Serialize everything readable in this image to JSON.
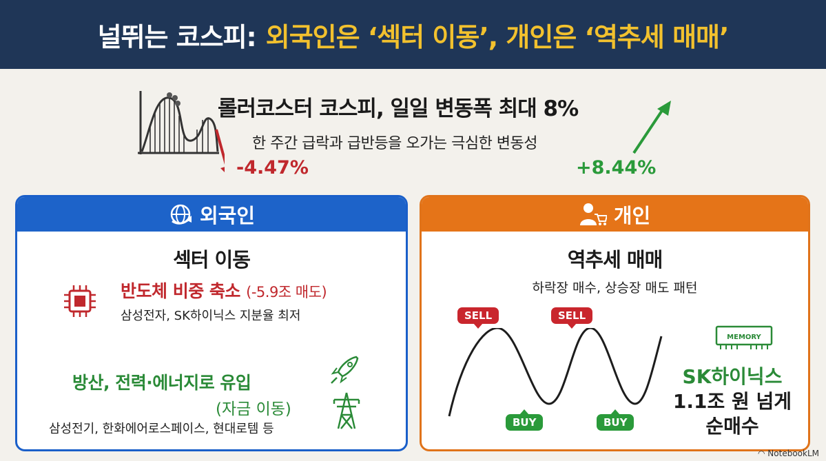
{
  "header": {
    "title_part1": "널뛰는 코스피:",
    "title_part2": "외국인은 ‘섹터 이동’, 개인은 ‘역추세 매매’"
  },
  "volatility": {
    "title": "롤러코스터 코스피, 일일 변동폭 최대 8%",
    "subtitle": "한 주간 급락과 급반등을 오가는 극심한 변동성",
    "drop_value": "-4.47%",
    "rise_value": "+8.44%",
    "icon": "roller-coaster-icon"
  },
  "foreign": {
    "label": "외국인",
    "icon": "globe-arrow-icon",
    "title": "섹터 이동",
    "semis_main": "반도체 비중 축소",
    "semis_amount": "(-5.9조 매도)",
    "semis_detail": "삼성전자, SK하이닉스 지분율 최저",
    "semis_icon": "chip-icon",
    "inflow_main": "방산, 전력·에너지로 유입",
    "inflow_sub": "(자금 이동)",
    "inflow_detail": "삼성전기, 한화에어로스페이스, 현대로템 등",
    "inflow_icons": [
      "rocket-icon",
      "power-tower-icon"
    ]
  },
  "individual": {
    "label": "개인",
    "icon": "person-cart-icon",
    "title": "역추세 매매",
    "subtitle": "하락장 매수, 상승장 매도 패턴",
    "sell_label": "SELL",
    "buy_label": "BUY",
    "memory_label": "MEMORY",
    "net_buy_line1": "SK하이닉스",
    "net_buy_line2": "1.1조 원 넘게",
    "net_buy_line3": "순매수"
  },
  "colors": {
    "header_bg": "#1f3657",
    "title_yellow": "#f2c12e",
    "foreign_blue": "#1d63c9",
    "individual_orange": "#e57418",
    "red": "#c0282d",
    "green": "#2a8a37"
  },
  "brand": "NotebookLM"
}
